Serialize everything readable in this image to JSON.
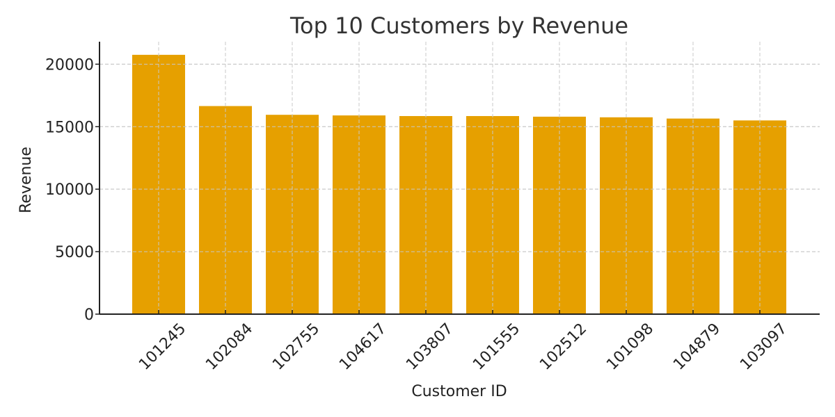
{
  "chart_data": {
    "type": "bar",
    "title": "Top 10 Customers by Revenue",
    "xlabel": "Customer ID",
    "ylabel": "Revenue",
    "categories": [
      "101245",
      "102084",
      "102755",
      "104617",
      "103807",
      "101555",
      "102512",
      "101098",
      "104879",
      "103097"
    ],
    "values": [
      20750,
      16650,
      15950,
      15900,
      15850,
      15850,
      15800,
      15750,
      15650,
      15500
    ],
    "ylim": [
      0,
      21800
    ],
    "yticks": [
      0,
      5000,
      10000,
      15000,
      20000
    ],
    "ytick_labels": [
      "0",
      "5000",
      "10000",
      "15000",
      "20000"
    ],
    "grid": true,
    "bar_color": "#e6a000",
    "tick_label_rotation": "45deg"
  }
}
